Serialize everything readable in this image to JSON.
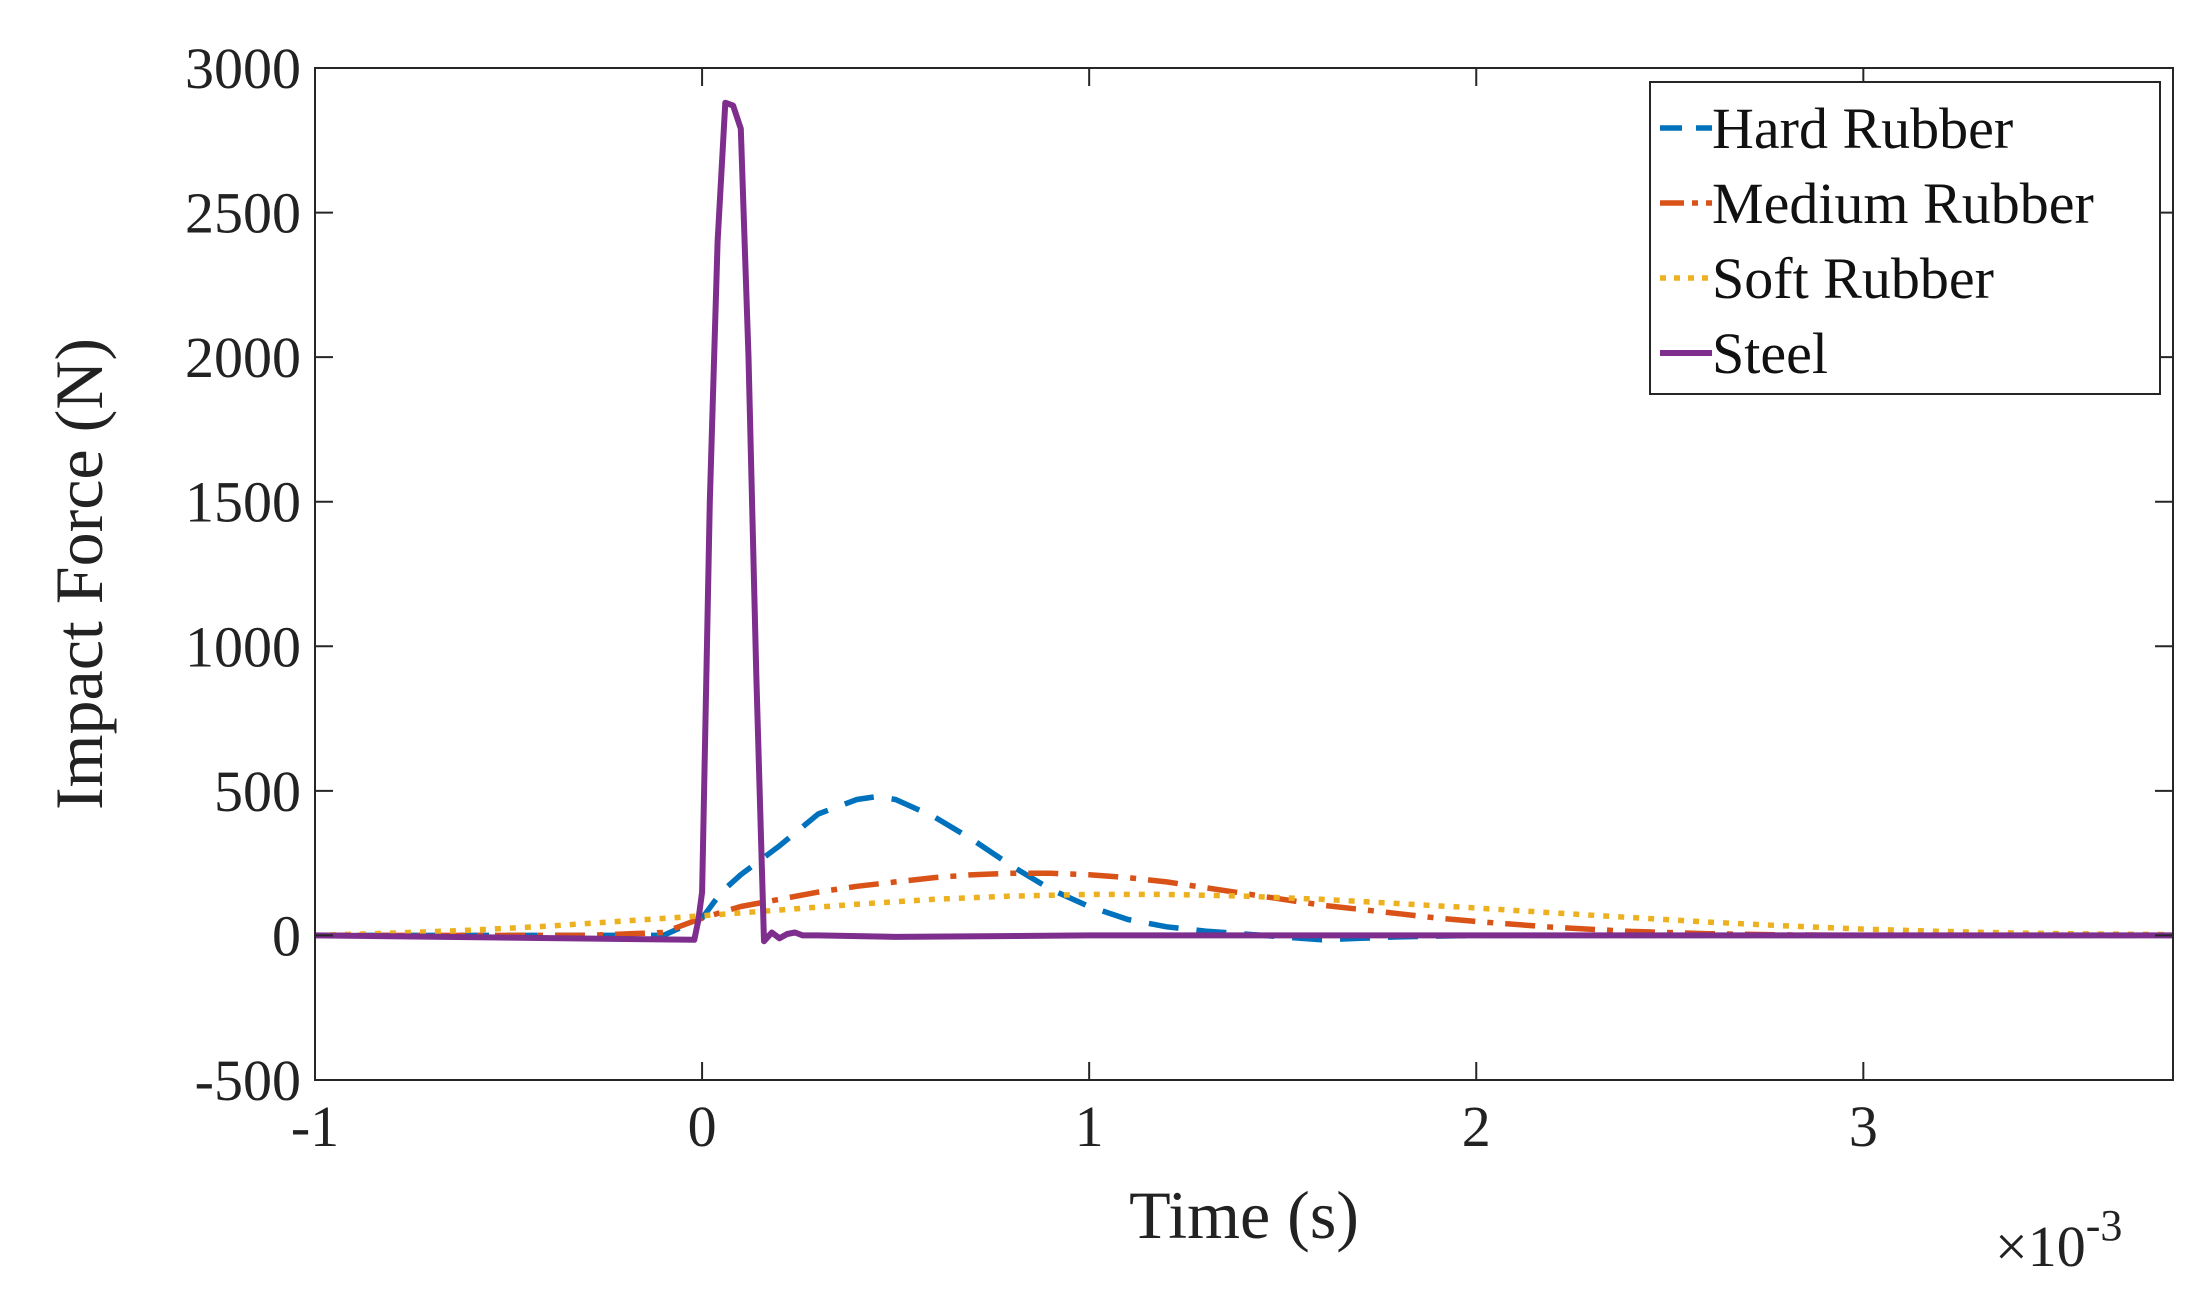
{
  "chart_data": {
    "type": "line",
    "title": "",
    "xlabel": "Time (s)",
    "ylabel": "Impact Force (N)",
    "x_exponent_label": "×10",
    "x_exponent": "-3",
    "xlim": [
      -1,
      3.8
    ],
    "ylim": [
      -500,
      3000
    ],
    "xticks": [
      -1,
      0,
      1,
      2,
      3
    ],
    "xtick_labels": [
      "-1",
      "0",
      "1",
      "2",
      "3"
    ],
    "yticks": [
      -500,
      0,
      500,
      1000,
      1500,
      2000,
      2500,
      3000
    ],
    "ytick_labels": [
      "-500",
      "0",
      "500",
      "1000",
      "1500",
      "2000",
      "2500",
      "3000"
    ],
    "grid": false,
    "legend_position": "top-right",
    "series": [
      {
        "name": "Hard Rubber",
        "color": "#0072BD",
        "style": "dashed",
        "x": [
          -1,
          -0.1,
          0,
          0.05,
          0.1,
          0.2,
          0.3,
          0.4,
          0.45,
          0.5,
          0.6,
          0.7,
          0.8,
          0.9,
          1.0,
          1.1,
          1.2,
          1.3,
          1.4,
          1.5,
          1.6,
          1.7,
          1.8,
          2.0,
          2.5,
          3.0,
          3.8
        ],
        "y": [
          0,
          0,
          60,
          150,
          210,
          310,
          420,
          470,
          480,
          470,
          410,
          330,
          240,
          160,
          100,
          55,
          30,
          15,
          5,
          -5,
          -15,
          -10,
          -5,
          0,
          0,
          0,
          0
        ]
      },
      {
        "name": "Medium Rubber",
        "color": "#D95319",
        "style": "dashdot",
        "x": [
          -1,
          -0.3,
          -0.1,
          0,
          0.1,
          0.2,
          0.3,
          0.4,
          0.5,
          0.6,
          0.7,
          0.8,
          0.9,
          1.0,
          1.1,
          1.2,
          1.3,
          1.4,
          1.5,
          1.6,
          1.7,
          1.8,
          1.9,
          2.0,
          2.2,
          2.4,
          2.6,
          2.8,
          3.0,
          3.8
        ],
        "y": [
          0,
          0,
          10,
          60,
          100,
          125,
          150,
          170,
          185,
          200,
          210,
          215,
          215,
          210,
          200,
          185,
          165,
          145,
          125,
          105,
          90,
          75,
          60,
          48,
          28,
          14,
          6,
          2,
          0,
          0
        ]
      },
      {
        "name": "Soft Rubber",
        "color": "#EDB120",
        "style": "dotted",
        "x": [
          -1,
          -0.8,
          -0.6,
          -0.4,
          -0.2,
          0,
          0.2,
          0.4,
          0.6,
          0.8,
          1.0,
          1.2,
          1.4,
          1.6,
          1.8,
          2.0,
          2.2,
          2.4,
          2.6,
          2.8,
          3.0,
          3.2,
          3.4,
          3.6,
          3.8
        ],
        "y": [
          0,
          8,
          18,
          32,
          50,
          68,
          88,
          108,
          125,
          136,
          142,
          142,
          136,
          125,
          110,
          95,
          78,
          62,
          46,
          33,
          22,
          14,
          8,
          5,
          3
        ]
      },
      {
        "name": "Steel",
        "color": "#7E2F8E",
        "style": "solid",
        "x": [
          -1,
          -0.02,
          -0.01,
          0.0,
          0.02,
          0.04,
          0.06,
          0.08,
          0.1,
          0.12,
          0.14,
          0.16,
          0.18,
          0.2,
          0.22,
          0.24,
          0.26,
          0.3,
          0.5,
          1.0,
          2.0,
          3.0,
          3.8
        ],
        "y": [
          0,
          -15,
          50,
          150,
          1500,
          2400,
          2880,
          2870,
          2790,
          2000,
          900,
          -20,
          10,
          -10,
          5,
          10,
          0,
          0,
          -5,
          0,
          0,
          0,
          0
        ]
      }
    ]
  }
}
